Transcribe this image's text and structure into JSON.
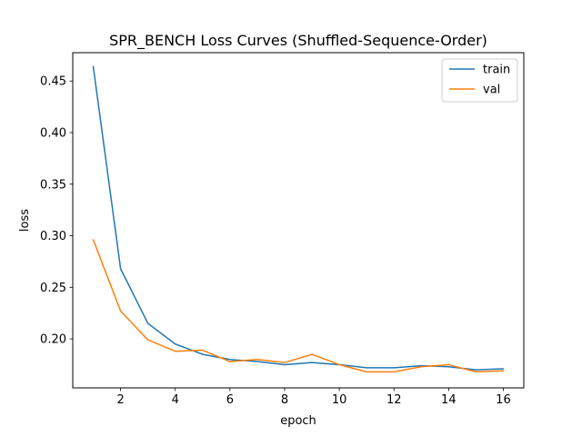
{
  "chart_data": {
    "type": "line",
    "title": "SPR_BENCH Loss Curves (Shuffled-Sequence-Order)",
    "xlabel": "epoch",
    "ylabel": "loss",
    "xlim": [
      0.25,
      16.75
    ],
    "ylim": [
      0.1525,
      0.4775
    ],
    "xticks": [
      2,
      4,
      6,
      8,
      10,
      12,
      14,
      16
    ],
    "yticks": [
      0.2,
      0.25,
      0.3,
      0.35,
      0.4,
      0.45
    ],
    "ytick_labels": [
      "0.20",
      "0.25",
      "0.30",
      "0.35",
      "0.40",
      "0.45"
    ],
    "legend_position": "top-right",
    "grid": false,
    "x": [
      1,
      2,
      3,
      4,
      5,
      6,
      7,
      8,
      9,
      10,
      11,
      12,
      13,
      14,
      15,
      16
    ],
    "series": [
      {
        "name": "train",
        "color": "#1f77b4",
        "values": [
          0.464,
          0.268,
          0.215,
          0.195,
          0.185,
          0.18,
          0.178,
          0.175,
          0.177,
          0.175,
          0.172,
          0.172,
          0.174,
          0.173,
          0.17,
          0.171
        ]
      },
      {
        "name": "val",
        "color": "#ff7f0e",
        "values": [
          0.296,
          0.227,
          0.199,
          0.188,
          0.189,
          0.178,
          0.18,
          0.177,
          0.185,
          0.175,
          0.168,
          0.168,
          0.173,
          0.175,
          0.168,
          0.169
        ]
      }
    ]
  }
}
